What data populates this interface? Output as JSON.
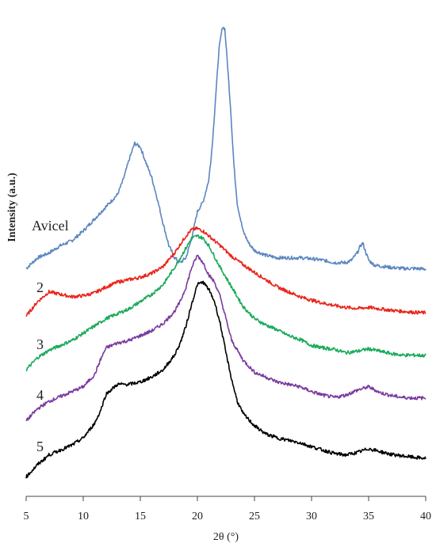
{
  "chart_data": {
    "type": "line",
    "xlabel": "2θ (°)",
    "ylabel": "Intensity (a.u.)",
    "xlim": [
      5,
      40
    ],
    "ylim": [
      0,
      100
    ],
    "xticks": [
      5,
      10,
      15,
      20,
      25,
      30,
      35,
      40
    ],
    "grid": false,
    "legend": "none",
    "series": [
      {
        "name": "Avicel",
        "color": "#5b86c0",
        "x": [
          5,
          6,
          7,
          8,
          9,
          10,
          11,
          12,
          13,
          13.5,
          14,
          14.5,
          15,
          15.5,
          16,
          16.5,
          17,
          17.5,
          18,
          18.5,
          19,
          19.5,
          20,
          20.5,
          21,
          21.3,
          21.6,
          21.9,
          22.2,
          22.4,
          22.6,
          22.9,
          23.2,
          23.5,
          24,
          24.5,
          25,
          26,
          27,
          28,
          29,
          30,
          31,
          32,
          33,
          33.5,
          34,
          34.3,
          34.5,
          34.7,
          35,
          35.5,
          36,
          37,
          38,
          39,
          40
        ],
        "values": [
          46.8,
          49.0,
          50.0,
          51.5,
          52.5,
          54.5,
          57.0,
          59.5,
          62.0,
          65.0,
          69.0,
          72.5,
          71.8,
          68.5,
          65.5,
          61.0,
          56.0,
          51.5,
          49.0,
          48.0,
          49.0,
          53.0,
          58.5,
          60.5,
          65.0,
          72.0,
          82.0,
          92.0,
          96.5,
          96.0,
          90.0,
          80.0,
          68.0,
          60.0,
          54.5,
          52.0,
          50.5,
          49.5,
          49.0,
          49.0,
          49.0,
          48.8,
          48.5,
          48.0,
          48.0,
          48.5,
          50.0,
          51.5,
          52.0,
          50.5,
          48.5,
          47.5,
          47.3,
          47.0,
          46.8,
          46.8,
          46.7
        ]
      },
      {
        "name": "2",
        "color": "#e8261c",
        "x": [
          5,
          6,
          7,
          8,
          9,
          10,
          11,
          12,
          13,
          14,
          15,
          16,
          17,
          18,
          19,
          19.5,
          20,
          20.5,
          21,
          22,
          23,
          24,
          25,
          26,
          27,
          28,
          29,
          30,
          31,
          32,
          33,
          34,
          35,
          36,
          37,
          38,
          39,
          40
        ],
        "values": [
          37.0,
          40.0,
          42.0,
          41.5,
          41.0,
          41.2,
          41.8,
          43.0,
          44.0,
          44.5,
          45.0,
          45.8,
          47.2,
          50.0,
          53.5,
          54.8,
          55.0,
          54.5,
          53.5,
          51.5,
          49.3,
          47.6,
          46.0,
          44.5,
          43.0,
          42.0,
          41.0,
          40.3,
          39.7,
          39.2,
          38.8,
          38.6,
          38.8,
          38.5,
          38.2,
          38.0,
          37.8,
          37.7
        ]
      },
      {
        "name": "3",
        "color": "#1aaa5a",
        "x": [
          5,
          6,
          7,
          8,
          9,
          10,
          11,
          12,
          13,
          14,
          15,
          16,
          17,
          18,
          19,
          19.5,
          20,
          20.5,
          21,
          22,
          23,
          24,
          25,
          26,
          27,
          28,
          29,
          30,
          31,
          32,
          33,
          34,
          35,
          36,
          37,
          38,
          39,
          40
        ],
        "values": [
          26.0,
          28.5,
          30.0,
          31.0,
          32.0,
          33.5,
          35.0,
          36.5,
          37.5,
          38.5,
          40.0,
          41.5,
          43.5,
          47.0,
          51.0,
          53.0,
          53.5,
          53.0,
          51.5,
          47.0,
          43.0,
          39.0,
          36.5,
          35.2,
          34.2,
          33.0,
          32.2,
          31.0,
          30.5,
          30.2,
          29.5,
          29.8,
          30.3,
          29.8,
          29.3,
          29.0,
          29.0,
          28.9
        ]
      },
      {
        "name": "4",
        "color": "#7a3b9e",
        "x": [
          5,
          6,
          7,
          8,
          9,
          10,
          11,
          11.5,
          12,
          13,
          14,
          15,
          16,
          17,
          18,
          18.5,
          19,
          19.5,
          20,
          20.5,
          21,
          21.5,
          22,
          22.5,
          23,
          24,
          25,
          26,
          27,
          28,
          29,
          30,
          31,
          32,
          33,
          34,
          35,
          36,
          37,
          38,
          39,
          40
        ],
        "values": [
          15.5,
          18.0,
          19.5,
          20.5,
          21.5,
          22.5,
          25.0,
          28.0,
          30.5,
          31.5,
          32.0,
          33.0,
          34.0,
          35.5,
          38.0,
          40.0,
          43.0,
          47.0,
          49.5,
          48.0,
          45.5,
          44.0,
          41.0,
          36.5,
          32.0,
          28.0,
          25.5,
          24.5,
          23.5,
          23.0,
          22.5,
          21.5,
          20.8,
          20.3,
          20.8,
          21.8,
          22.5,
          21.3,
          20.7,
          20.3,
          20.2,
          20.2
        ]
      },
      {
        "name": "5",
        "color": "#000000",
        "x": [
          5,
          6,
          7,
          8,
          9,
          10,
          11,
          11.5,
          12,
          13,
          14,
          15,
          16,
          17,
          18,
          18.5,
          19,
          19.5,
          20,
          20.5,
          21,
          21.5,
          22,
          22.5,
          23,
          23.5,
          24,
          25,
          26,
          27,
          28,
          29,
          30,
          31,
          32,
          33,
          34,
          35,
          36,
          37,
          38,
          39,
          40
        ],
        "values": [
          4.0,
          6.5,
          8.5,
          9.5,
          10.5,
          12.0,
          15.0,
          17.5,
          21.0,
          23.0,
          23.0,
          23.5,
          24.5,
          26.0,
          29.0,
          31.5,
          35.0,
          39.5,
          43.5,
          44.0,
          42.5,
          40.0,
          35.5,
          29.5,
          24.0,
          19.5,
          17.0,
          14.5,
          12.8,
          12.0,
          11.5,
          11.0,
          10.2,
          9.5,
          8.8,
          8.5,
          9.0,
          9.8,
          9.2,
          8.6,
          8.3,
          8.0,
          7.8
        ]
      }
    ]
  }
}
